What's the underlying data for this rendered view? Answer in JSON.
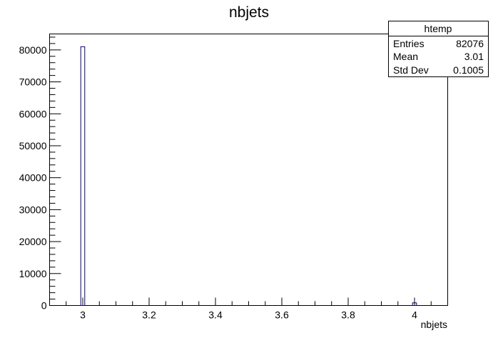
{
  "chart_data": {
    "type": "bar",
    "title": "nbjets",
    "xlabel": "nbjets",
    "ylabel": "",
    "xlim": [
      2.9,
      4.1
    ],
    "ylim": [
      0,
      85000
    ],
    "bin_width": 0.012,
    "bins": [
      {
        "x": 3.0,
        "value": 81000
      },
      {
        "x": 4.0,
        "value": 830
      }
    ],
    "x_ticks": [
      "3",
      "3.2",
      "3.4",
      "3.6",
      "3.8",
      "4"
    ],
    "y_ticks": [
      "0",
      "10000",
      "20000",
      "30000",
      "40000",
      "50000",
      "60000",
      "70000",
      "80000"
    ],
    "line_color": "#000080",
    "stats": {
      "name": "htemp",
      "rows": [
        {
          "label": "Entries",
          "value": "82076"
        },
        {
          "label": "Mean",
          "value": "3.01"
        },
        {
          "label": "Std Dev",
          "value": "0.1005"
        }
      ]
    }
  }
}
